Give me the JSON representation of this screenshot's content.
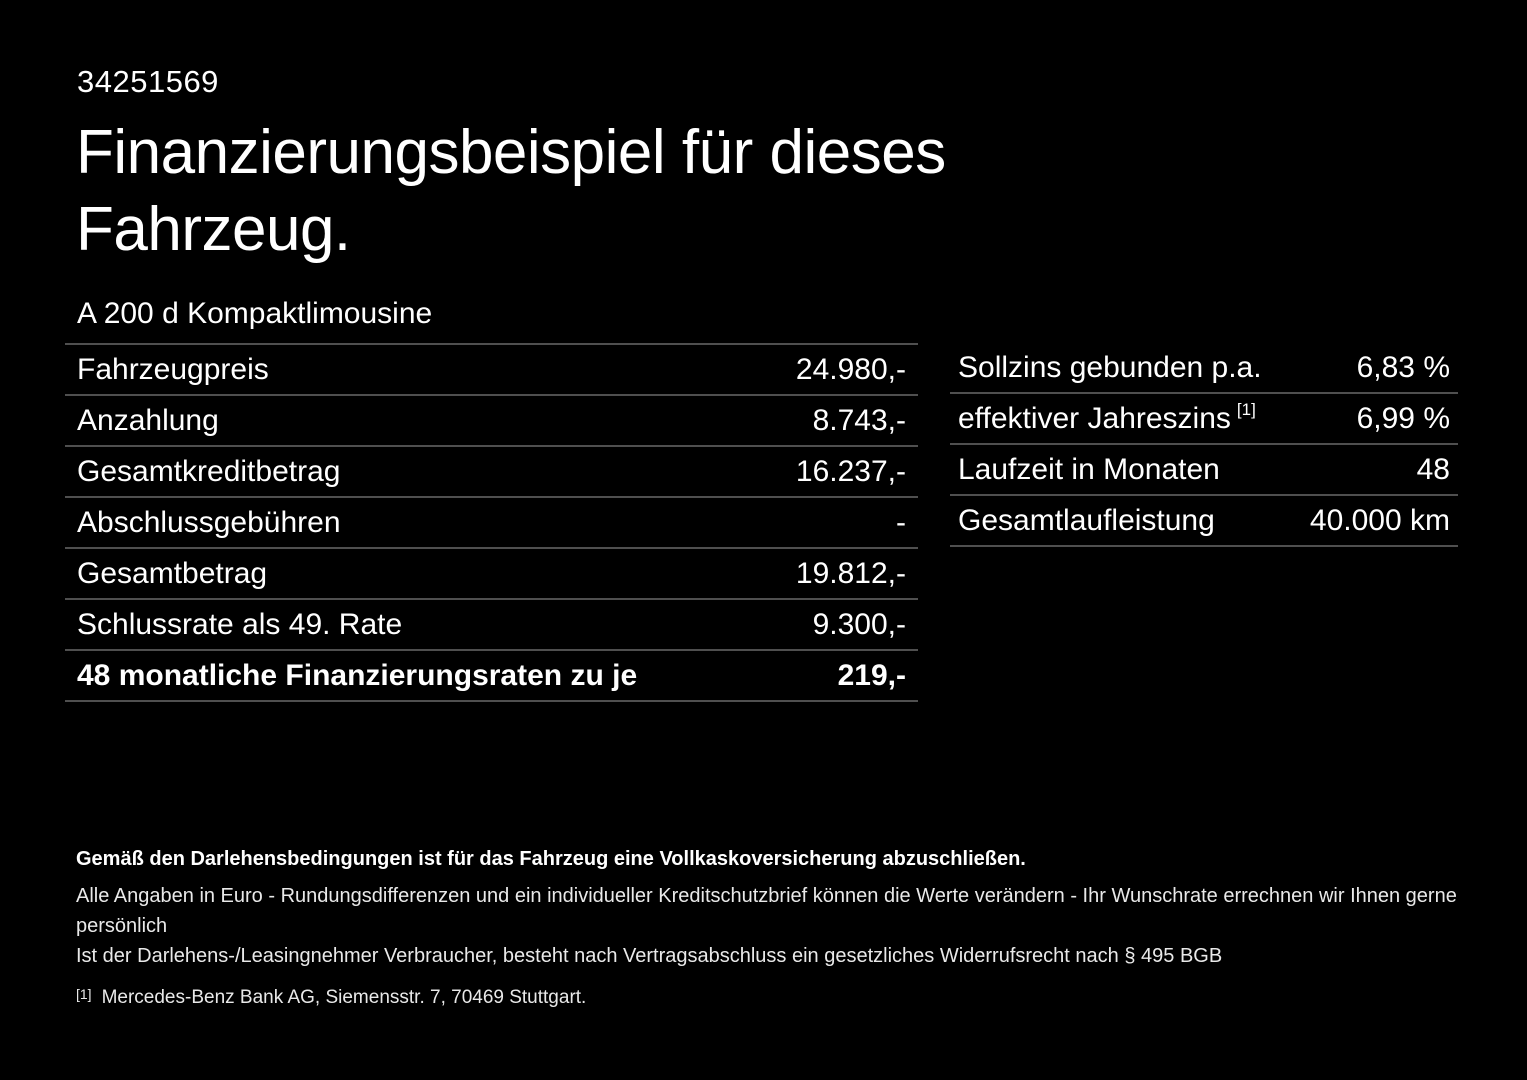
{
  "page": {
    "id_number": "34251569",
    "title_line1": "Finanzierungsbeispiel für dieses",
    "title_line2": "Fahrzeug.",
    "subtitle": "A 200 d Kompaktlimousine"
  },
  "finance_table": {
    "rows": [
      {
        "label": "Fahrzeugpreis",
        "value": "24.980,-",
        "bold": false
      },
      {
        "label": "Anzahlung",
        "value": "8.743,-",
        "bold": false
      },
      {
        "label": "Gesamtkreditbetrag",
        "value": "16.237,-",
        "bold": false
      },
      {
        "label": "Abschlussgebühren",
        "value": "-",
        "bold": false
      },
      {
        "label": "Gesamtbetrag",
        "value": "19.812,-",
        "bold": false
      },
      {
        "label": "Schlussrate als 49. Rate",
        "value": "9.300,-",
        "bold": false
      },
      {
        "label": "48 monatliche Finanzierungsraten zu je",
        "value": "219,-",
        "bold": true
      }
    ]
  },
  "conditions_table": {
    "rows": [
      {
        "label": "Sollzins gebunden p.a.",
        "value": "6,83 %"
      },
      {
        "label": "effektiver Jahreszins",
        "sup": "[1]",
        "value": "6,99 %"
      },
      {
        "label": "Laufzeit in Monaten",
        "value": "48"
      },
      {
        "label": "Gesamtlaufleistung",
        "value": "40.000 km"
      }
    ]
  },
  "footer": {
    "bold_note": "Gemäß den Darlehensbedingungen ist für das Fahrzeug eine Vollkaskoversicherung abzuschließen.",
    "note2": "Alle Angaben in Euro - Rundungsdifferenzen und ein individueller Kreditschutzbrief können die Werte verändern - Ihr Wunschrate errechnen wir Ihnen gerne persönlich",
    "note3": "Ist der Darlehens-/Leasingnehmer Verbraucher, besteht nach Vertragsabschluss ein gesetzliches Widerrufsrecht nach § 495 BGB",
    "footnote_marker": "[1]",
    "footnote_text": "Mercedes-Benz Bank AG, Siemensstr. 7, 70469 Stuttgart."
  },
  "colors": {
    "background": "#000000",
    "text": "#ffffff",
    "separator": "#4f4f4f"
  }
}
